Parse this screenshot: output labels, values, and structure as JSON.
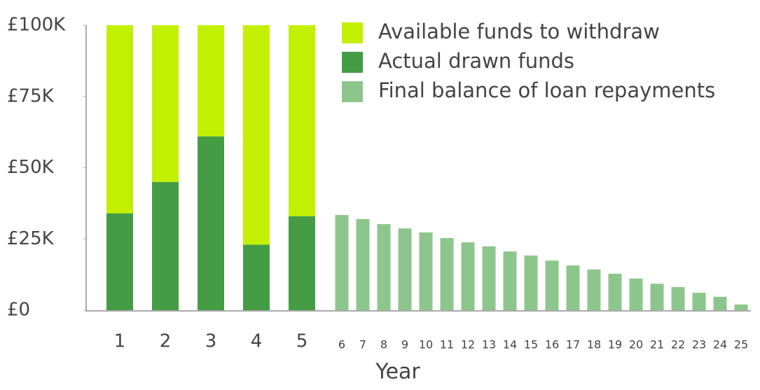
{
  "chart_data": {
    "type": "bar",
    "stacked": true,
    "x_label": "Year",
    "categories": [
      "1",
      "2",
      "3",
      "4",
      "5",
      "6",
      "7",
      "8",
      "9",
      "10",
      "11",
      "12",
      "13",
      "14",
      "15",
      "16",
      "17",
      "18",
      "19",
      "20",
      "21",
      "22",
      "23",
      "24",
      "25"
    ],
    "series": [
      {
        "name": "Available funds to withdraw",
        "color": "#c3f000",
        "values": [
          66,
          55,
          39,
          77,
          67,
          null,
          null,
          null,
          null,
          null,
          null,
          null,
          null,
          null,
          null,
          null,
          null,
          null,
          null,
          null,
          null,
          null,
          null,
          null,
          null
        ]
      },
      {
        "name": "Actual drawn funds",
        "color": "#449d44",
        "values": [
          34,
          45,
          61,
          23,
          33,
          null,
          null,
          null,
          null,
          null,
          null,
          null,
          null,
          null,
          null,
          null,
          null,
          null,
          null,
          null,
          null,
          null,
          null,
          null,
          null
        ]
      },
      {
        "name": "Final balance of loan repayments",
        "color": "#8dc68d",
        "values": [
          null,
          null,
          null,
          null,
          null,
          33.4,
          32,
          30.2,
          28.7,
          27.3,
          25.3,
          23.8,
          22.4,
          20.6,
          19.2,
          17.4,
          15.7,
          14.3,
          12.8,
          11.1,
          9.3,
          8.1,
          6.1,
          4.7,
          2.0
        ]
      }
    ],
    "ylim": [
      0,
      100
    ],
    "yticks": [
      {
        "value": 0,
        "label": "£0"
      },
      {
        "value": 25,
        "label": "£25K"
      },
      {
        "value": 50,
        "label": "£50K"
      },
      {
        "value": 75,
        "label": "£75K"
      },
      {
        "value": 100,
        "label": "£100K"
      }
    ],
    "grid": false,
    "legend": "top-right"
  }
}
